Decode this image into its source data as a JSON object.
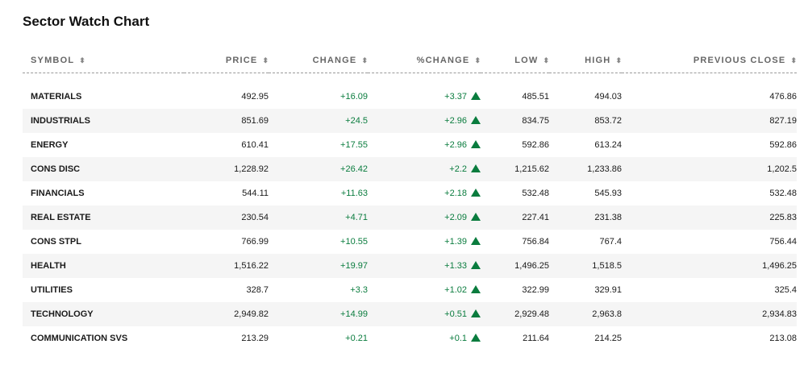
{
  "title": "Sector Watch Chart",
  "accent_up_color": "#0a7c3e",
  "header": {
    "symbol": "SYMBOL",
    "price": "PRICE",
    "change": "CHANGE",
    "pct_change": "%CHANGE",
    "low": "LOW",
    "high": "HIGH",
    "previous_close": "PREVIOUS CLOSE",
    "sort_icon": "⬍"
  },
  "rows": [
    {
      "symbol": "MATERIALS",
      "price": "492.95",
      "change": "+16.09",
      "pct_change": "+3.37",
      "low": "485.51",
      "high": "494.03",
      "previous_close": "476.86"
    },
    {
      "symbol": "INDUSTRIALS",
      "price": "851.69",
      "change": "+24.5",
      "pct_change": "+2.96",
      "low": "834.75",
      "high": "853.72",
      "previous_close": "827.19"
    },
    {
      "symbol": "ENERGY",
      "price": "610.41",
      "change": "+17.55",
      "pct_change": "+2.96",
      "low": "592.86",
      "high": "613.24",
      "previous_close": "592.86"
    },
    {
      "symbol": "CONS DISC",
      "price": "1,228.92",
      "change": "+26.42",
      "pct_change": "+2.2",
      "low": "1,215.62",
      "high": "1,233.86",
      "previous_close": "1,202.5"
    },
    {
      "symbol": "FINANCIALS",
      "price": "544.11",
      "change": "+11.63",
      "pct_change": "+2.18",
      "low": "532.48",
      "high": "545.93",
      "previous_close": "532.48"
    },
    {
      "symbol": "REAL ESTATE",
      "price": "230.54",
      "change": "+4.71",
      "pct_change": "+2.09",
      "low": "227.41",
      "high": "231.38",
      "previous_close": "225.83"
    },
    {
      "symbol": "CONS STPL",
      "price": "766.99",
      "change": "+10.55",
      "pct_change": "+1.39",
      "low": "756.84",
      "high": "767.4",
      "previous_close": "756.44"
    },
    {
      "symbol": "HEALTH",
      "price": "1,516.22",
      "change": "+19.97",
      "pct_change": "+1.33",
      "low": "1,496.25",
      "high": "1,518.5",
      "previous_close": "1,496.25"
    },
    {
      "symbol": "UTILITIES",
      "price": "328.7",
      "change": "+3.3",
      "pct_change": "+1.02",
      "low": "322.99",
      "high": "329.91",
      "previous_close": "325.4"
    },
    {
      "symbol": "TECHNOLOGY",
      "price": "2,949.82",
      "change": "+14.99",
      "pct_change": "+0.51",
      "low": "2,929.48",
      "high": "2,963.8",
      "previous_close": "2,934.83"
    },
    {
      "symbol": "COMMUNICATION SVS",
      "price": "213.29",
      "change": "+0.21",
      "pct_change": "+0.1",
      "low": "211.64",
      "high": "214.25",
      "previous_close": "213.08"
    }
  ]
}
